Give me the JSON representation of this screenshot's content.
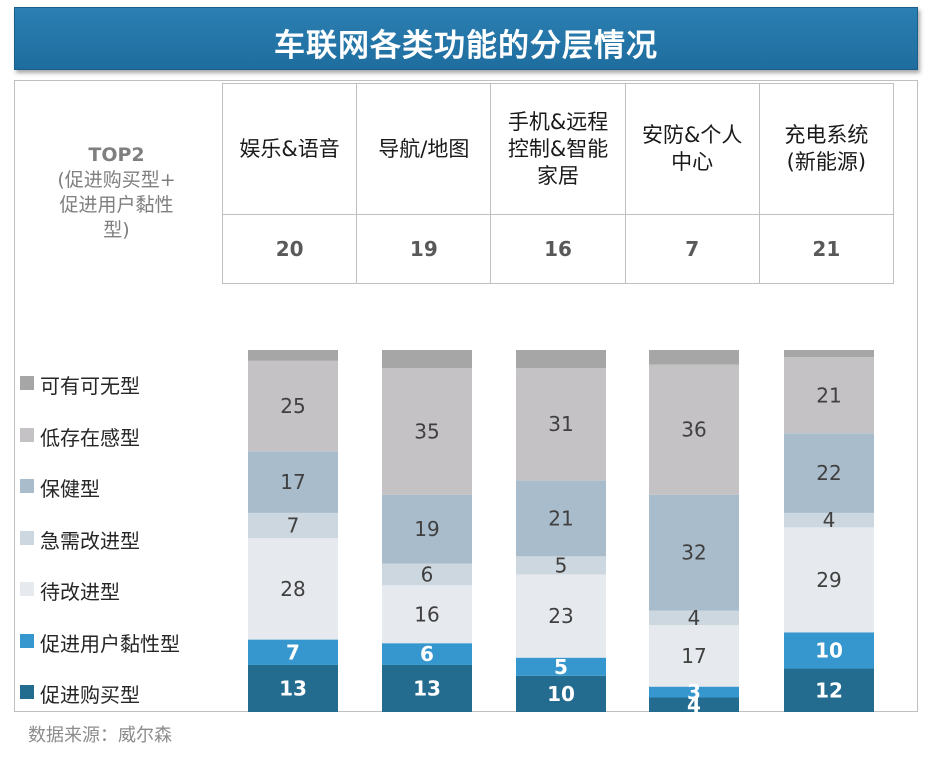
{
  "title": "车联网各类功能的分层情况",
  "top2_label": {
    "line1": "TOP2",
    "line2": "(促进购买型+",
    "line3": "促进用户黏性",
    "line4": "型)"
  },
  "source": "数据来源：威尔森",
  "colors": {
    "title_bg": "#2378ab",
    "可有可无型": "#a6a6a6",
    "低存在感型": "#c4c2c5",
    "保健型": "#a9bccb",
    "急需改进型": "#ccd7df",
    "待改进型": "#e6e9ee",
    "促进用户黏性型": "#3597cd",
    "促进购买型": "#236c90"
  },
  "chart_data": {
    "type": "bar",
    "stacked": true,
    "categories": [
      [
        "娱乐&语音"
      ],
      [
        "导航/地图"
      ],
      [
        "手机&远程",
        "控制&智能",
        "家居"
      ],
      [
        "安防&个人",
        "中心"
      ],
      [
        "充电系统",
        "(新能源)"
      ]
    ],
    "top2": [
      "20",
      "19",
      "16",
      "7",
      "21"
    ],
    "ylim": [
      0,
      100
    ],
    "series": [
      {
        "name": "促进购买型",
        "values": [
          13,
          13,
          10,
          4,
          12
        ],
        "label_color": "#ffffff",
        "bold": true
      },
      {
        "name": "促进用户黏性型",
        "values": [
          7,
          6,
          5,
          3,
          10
        ],
        "label_color": "#ffffff",
        "bold": true
      },
      {
        "name": "待改进型",
        "values": [
          28,
          16,
          23,
          17,
          29
        ],
        "label_color": "#404040",
        "bold": false
      },
      {
        "name": "急需改进型",
        "values": [
          7,
          6,
          5,
          4,
          4
        ],
        "label_color": "#404040",
        "bold": false
      },
      {
        "name": "保健型",
        "values": [
          17,
          19,
          21,
          32,
          22
        ],
        "label_color": "#404040",
        "bold": false
      },
      {
        "name": "低存在感型",
        "values": [
          25,
          35,
          31,
          36,
          21
        ],
        "label_color": "#404040",
        "bold": false
      },
      {
        "name": "可有可无型",
        "values": [
          3,
          5,
          5,
          4,
          2
        ],
        "label_color": "#404040",
        "bold": false,
        "hide_label": true
      }
    ],
    "legend_order": [
      "可有可无型",
      "低存在感型",
      "保健型",
      "急需改进型",
      "待改进型",
      "促进用户黏性型",
      "促进购买型"
    ]
  }
}
